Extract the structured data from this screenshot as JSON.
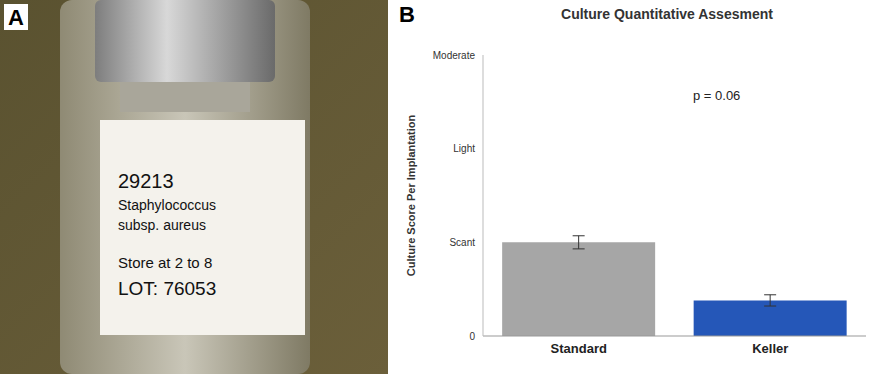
{
  "panel_labels": [
    "A",
    "B"
  ],
  "photo": {
    "label_lines": [
      "29213",
      "Staphylococcus",
      "subsp. aureus",
      "Store at 2 to 8",
      "LOT: 76053"
    ]
  },
  "chart_data": {
    "type": "bar",
    "title": "Culture Quantitative Assesment",
    "y_label": "Culture Score Per Implantation",
    "categories": [
      "Standard",
      "Keller"
    ],
    "values": [
      1.0,
      0.38
    ],
    "errors": [
      0.07,
      0.06
    ],
    "colors": [
      "#a6a6a6",
      "#2557b8"
    ],
    "ylim": [
      0,
      3
    ],
    "yticks": [
      {
        "value": 0,
        "label": "0"
      },
      {
        "value": 1,
        "label": "Scant"
      },
      {
        "value": 2,
        "label": "Light"
      },
      {
        "value": 3,
        "label": "Moderate"
      }
    ],
    "annotations": [
      "p = 0.06"
    ],
    "grid": false
  }
}
